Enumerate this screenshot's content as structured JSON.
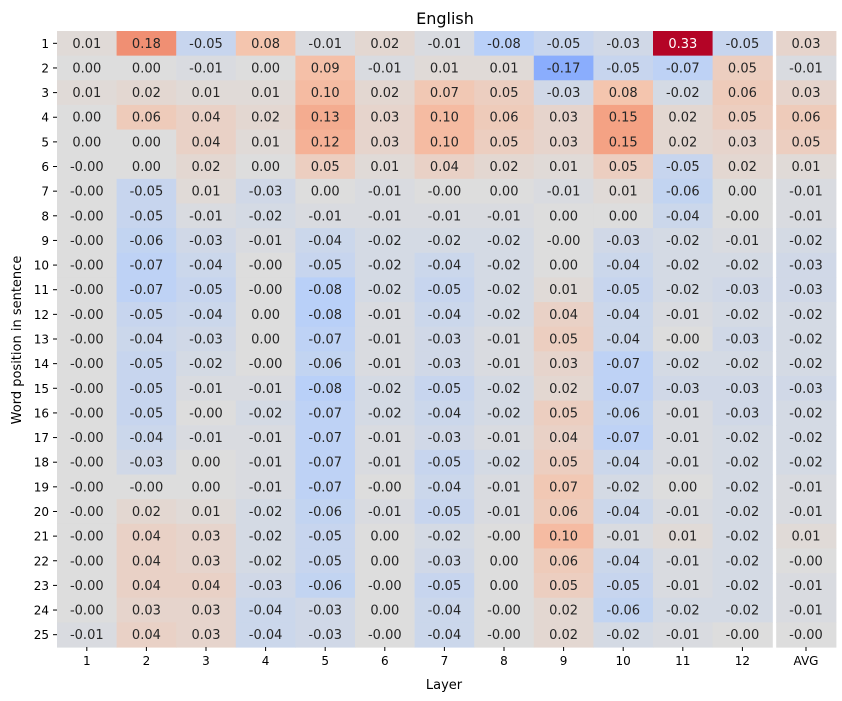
{
  "chart_data": {
    "type": "heatmap",
    "title": "English",
    "xlabel": "Layer",
    "ylabel": "Word position in sentence",
    "x_categories": [
      "1",
      "2",
      "3",
      "4",
      "5",
      "6",
      "7",
      "8",
      "9",
      "10",
      "11",
      "12",
      "AVG"
    ],
    "y_categories": [
      "1",
      "2",
      "3",
      "4",
      "5",
      "6",
      "7",
      "8",
      "9",
      "10",
      "11",
      "12",
      "13",
      "14",
      "15",
      "16",
      "17",
      "18",
      "19",
      "20",
      "21",
      "22",
      "23",
      "24",
      "25"
    ],
    "value_format": "2 decimals",
    "colormap": "coolwarm",
    "color_range": [
      -0.33,
      0.33
    ],
    "separator_before": "AVG",
    "grid": false,
    "values": [
      [
        0.01,
        0.18,
        -0.05,
        0.08,
        -0.01,
        0.02,
        -0.01,
        -0.08,
        -0.05,
        -0.03,
        0.33,
        -0.05,
        0.03
      ],
      [
        0.0,
        0.0,
        -0.01,
        0.0,
        0.09,
        -0.01,
        0.01,
        0.01,
        -0.17,
        -0.05,
        -0.07,
        0.05,
        -0.01
      ],
      [
        0.01,
        0.02,
        0.01,
        0.01,
        0.1,
        0.02,
        0.07,
        0.05,
        -0.03,
        0.08,
        -0.02,
        0.06,
        0.03
      ],
      [
        0.0,
        0.06,
        0.04,
        0.02,
        0.13,
        0.03,
        0.1,
        0.06,
        0.03,
        0.15,
        0.02,
        0.05,
        0.06
      ],
      [
        0.0,
        0.0,
        0.04,
        0.01,
        0.12,
        0.03,
        0.1,
        0.05,
        0.03,
        0.15,
        0.02,
        0.03,
        0.05
      ],
      [
        -0.0,
        0.0,
        0.02,
        0.0,
        0.05,
        0.01,
        0.04,
        0.02,
        0.01,
        0.05,
        -0.05,
        0.02,
        0.01
      ],
      [
        -0.0,
        -0.05,
        0.01,
        -0.03,
        0.0,
        -0.01,
        -0.0,
        0.0,
        -0.01,
        0.01,
        -0.06,
        0.0,
        -0.01
      ],
      [
        -0.0,
        -0.05,
        -0.01,
        -0.02,
        -0.01,
        -0.01,
        -0.01,
        -0.01,
        0.0,
        0.0,
        -0.04,
        -0.0,
        -0.01
      ],
      [
        -0.0,
        -0.06,
        -0.03,
        -0.01,
        -0.04,
        -0.02,
        -0.02,
        -0.02,
        -0.0,
        -0.03,
        -0.02,
        -0.01,
        -0.02
      ],
      [
        -0.0,
        -0.07,
        -0.04,
        -0.0,
        -0.05,
        -0.02,
        -0.04,
        -0.02,
        0.0,
        -0.04,
        -0.02,
        -0.02,
        -0.03
      ],
      [
        -0.0,
        -0.07,
        -0.05,
        -0.0,
        -0.08,
        -0.02,
        -0.05,
        -0.02,
        0.01,
        -0.05,
        -0.02,
        -0.03,
        -0.03
      ],
      [
        -0.0,
        -0.05,
        -0.04,
        0.0,
        -0.08,
        -0.01,
        -0.04,
        -0.02,
        0.04,
        -0.04,
        -0.01,
        -0.02,
        -0.02
      ],
      [
        -0.0,
        -0.04,
        -0.03,
        0.0,
        -0.07,
        -0.01,
        -0.03,
        -0.01,
        0.05,
        -0.04,
        -0.0,
        -0.03,
        -0.02
      ],
      [
        -0.0,
        -0.05,
        -0.02,
        -0.0,
        -0.06,
        -0.01,
        -0.03,
        -0.01,
        0.03,
        -0.07,
        -0.02,
        -0.02,
        -0.02
      ],
      [
        -0.0,
        -0.05,
        -0.01,
        -0.01,
        -0.08,
        -0.02,
        -0.05,
        -0.02,
        0.02,
        -0.07,
        -0.03,
        -0.03,
        -0.03
      ],
      [
        -0.0,
        -0.05,
        -0.0,
        -0.02,
        -0.07,
        -0.02,
        -0.04,
        -0.02,
        0.05,
        -0.06,
        -0.01,
        -0.03,
        -0.02
      ],
      [
        -0.0,
        -0.04,
        -0.01,
        -0.01,
        -0.07,
        -0.01,
        -0.03,
        -0.01,
        0.04,
        -0.07,
        -0.01,
        -0.02,
        -0.02
      ],
      [
        -0.0,
        -0.03,
        0.0,
        -0.01,
        -0.07,
        -0.01,
        -0.05,
        -0.02,
        0.05,
        -0.04,
        -0.01,
        -0.02,
        -0.02
      ],
      [
        -0.0,
        -0.0,
        0.0,
        -0.01,
        -0.07,
        -0.0,
        -0.04,
        -0.01,
        0.07,
        -0.02,
        0.0,
        -0.02,
        -0.01
      ],
      [
        -0.0,
        0.02,
        0.01,
        -0.02,
        -0.06,
        -0.01,
        -0.05,
        -0.01,
        0.06,
        -0.04,
        -0.01,
        -0.02,
        -0.01
      ],
      [
        -0.0,
        0.04,
        0.03,
        -0.02,
        -0.05,
        0.0,
        -0.02,
        -0.0,
        0.1,
        -0.01,
        0.01,
        -0.02,
        0.01
      ],
      [
        -0.0,
        0.04,
        0.03,
        -0.02,
        -0.05,
        0.0,
        -0.03,
        0.0,
        0.06,
        -0.04,
        -0.01,
        -0.02,
        -0.0
      ],
      [
        -0.0,
        0.04,
        0.04,
        -0.03,
        -0.06,
        -0.0,
        -0.05,
        0.0,
        0.05,
        -0.05,
        -0.01,
        -0.02,
        -0.01
      ],
      [
        -0.0,
        0.03,
        0.03,
        -0.04,
        -0.03,
        0.0,
        -0.04,
        -0.0,
        0.02,
        -0.06,
        -0.02,
        -0.02,
        -0.01
      ],
      [
        -0.01,
        0.04,
        0.03,
        -0.04,
        -0.03,
        -0.0,
        -0.04,
        -0.0,
        0.02,
        -0.02,
        -0.01,
        -0.0,
        -0.0
      ]
    ]
  }
}
